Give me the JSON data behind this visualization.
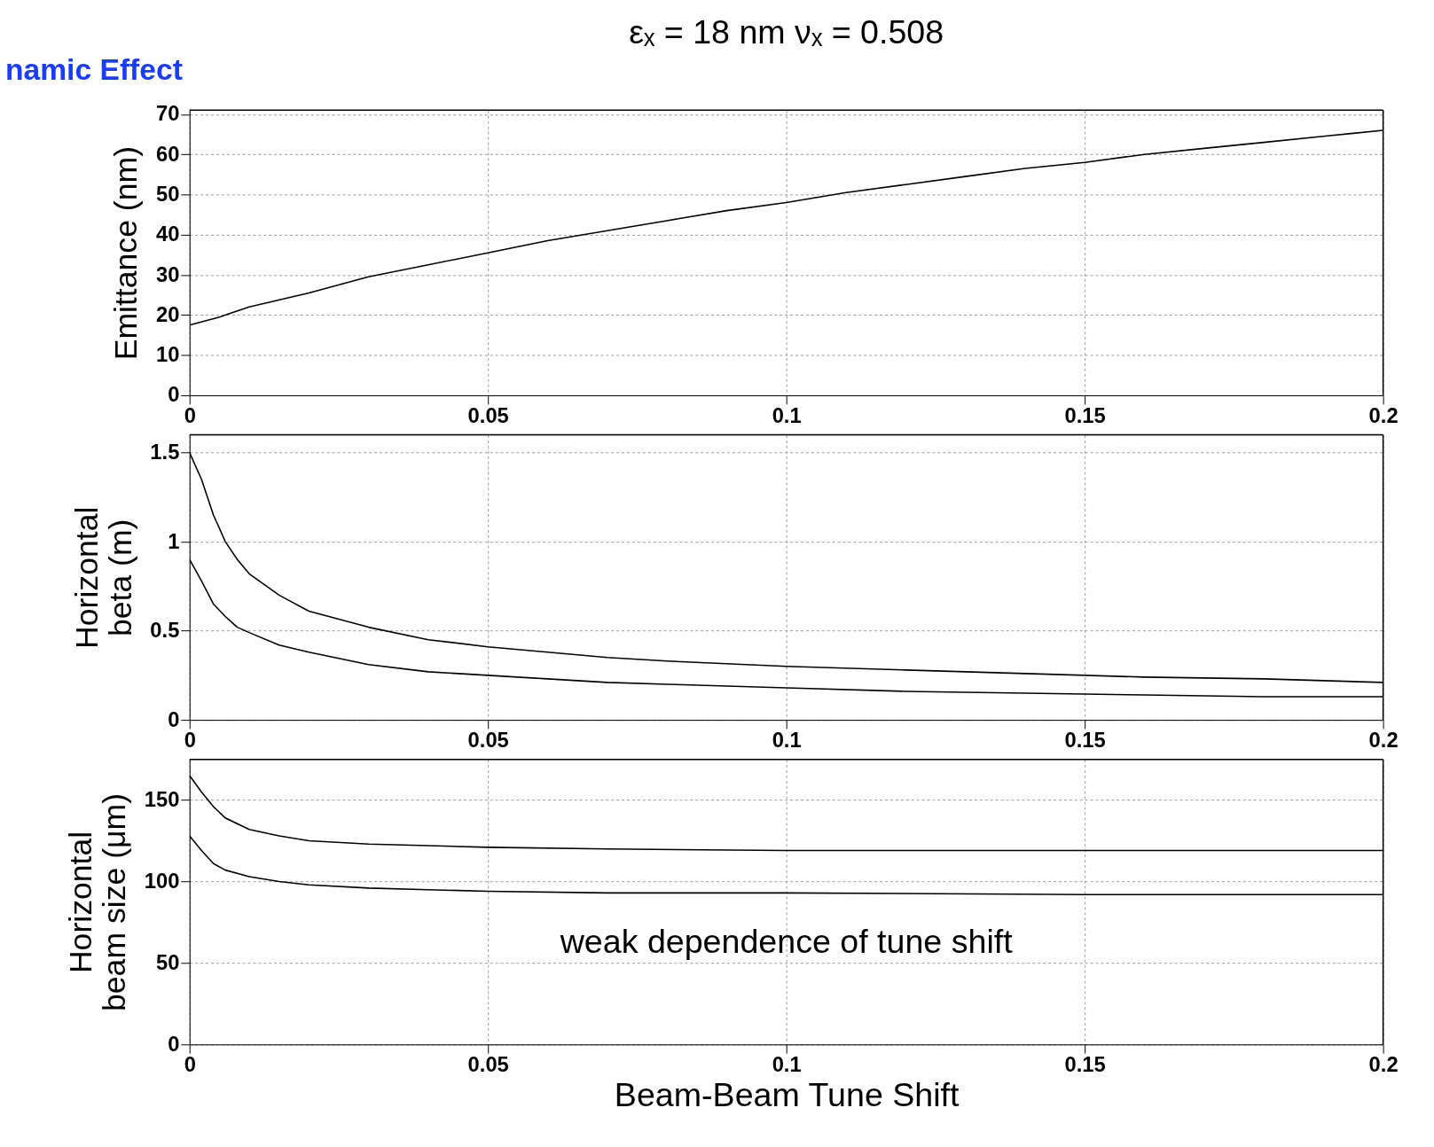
{
  "chart_data": [
    {
      "type": "line",
      "title": "εₓ = 18 nm  νₓ = 0.508",
      "ylabel": "Emittance (nm)",
      "annotations": [
        "namic Effect"
      ],
      "x": [
        0,
        0.005,
        0.01,
        0.02,
        0.03,
        0.04,
        0.05,
        0.06,
        0.07,
        0.08,
        0.09,
        0.1,
        0.11,
        0.12,
        0.13,
        0.14,
        0.15,
        0.16,
        0.17,
        0.18,
        0.19,
        0.2
      ],
      "series": [
        {
          "color": "#000000",
          "values": [
            17.5,
            19.5,
            22,
            25.5,
            29.5,
            32.5,
            35.5,
            38.5,
            41,
            43.5,
            46,
            48,
            50.5,
            52.5,
            54.5,
            56.5,
            58,
            60,
            61.5,
            63,
            64.5,
            66
          ]
        }
      ],
      "xlim": [
        0,
        0.2
      ],
      "xticks": [
        0,
        0.05,
        0.1,
        0.15,
        0.2
      ],
      "ylim": [
        0,
        71
      ],
      "yticks": [
        0,
        10,
        20,
        30,
        40,
        50,
        60,
        70
      ],
      "grid": true,
      "line_style": "solid"
    },
    {
      "type": "line",
      "ylabel": "Horizontal\nbeta (m)",
      "x": [
        0,
        0.002,
        0.004,
        0.006,
        0.008,
        0.01,
        0.015,
        0.02,
        0.03,
        0.04,
        0.05,
        0.06,
        0.07,
        0.08,
        0.1,
        0.12,
        0.14,
        0.16,
        0.18,
        0.2
      ],
      "series": [
        {
          "color": "#000000",
          "values": [
            1.5,
            1.35,
            1.15,
            1.0,
            0.9,
            0.82,
            0.7,
            0.61,
            0.52,
            0.45,
            0.41,
            0.38,
            0.35,
            0.33,
            0.3,
            0.28,
            0.26,
            0.24,
            0.23,
            0.21
          ]
        },
        {
          "color": "#000000",
          "values": [
            0.9,
            0.78,
            0.65,
            0.58,
            0.52,
            0.49,
            0.42,
            0.38,
            0.31,
            0.27,
            0.25,
            0.23,
            0.21,
            0.2,
            0.18,
            0.16,
            0.15,
            0.14,
            0.13,
            0.13
          ]
        }
      ],
      "xlim": [
        0,
        0.2
      ],
      "xticks": [
        0,
        0.05,
        0.1,
        0.15,
        0.2
      ],
      "ylim": [
        0,
        1.6
      ],
      "yticks": [
        0,
        0.5,
        1,
        1.5
      ],
      "grid": true,
      "line_style": "solid"
    },
    {
      "type": "line",
      "ylabel": "Horizontal\nbeam size (μm)",
      "xlabel": "Beam-Beam Tune Shift",
      "annotations": [
        "weak dependence of tune shift"
      ],
      "x": [
        0,
        0.002,
        0.004,
        0.006,
        0.01,
        0.015,
        0.02,
        0.03,
        0.04,
        0.05,
        0.07,
        0.1,
        0.15,
        0.2
      ],
      "series": [
        {
          "color": "#000000",
          "values": [
            165,
            155,
            146,
            139,
            132,
            128,
            125,
            123,
            122,
            121,
            120,
            119,
            119,
            119
          ]
        },
        {
          "color": "#000000",
          "values": [
            128,
            119,
            111,
            107,
            103,
            100,
            98,
            96,
            95,
            94,
            93,
            93,
            92,
            92
          ]
        }
      ],
      "xlim": [
        0,
        0.2
      ],
      "xticks": [
        0,
        0.05,
        0.1,
        0.15,
        0.2
      ],
      "ylim": [
        0,
        175
      ],
      "yticks": [
        0,
        50,
        100,
        150
      ],
      "grid": true,
      "line_style": "solid"
    }
  ]
}
